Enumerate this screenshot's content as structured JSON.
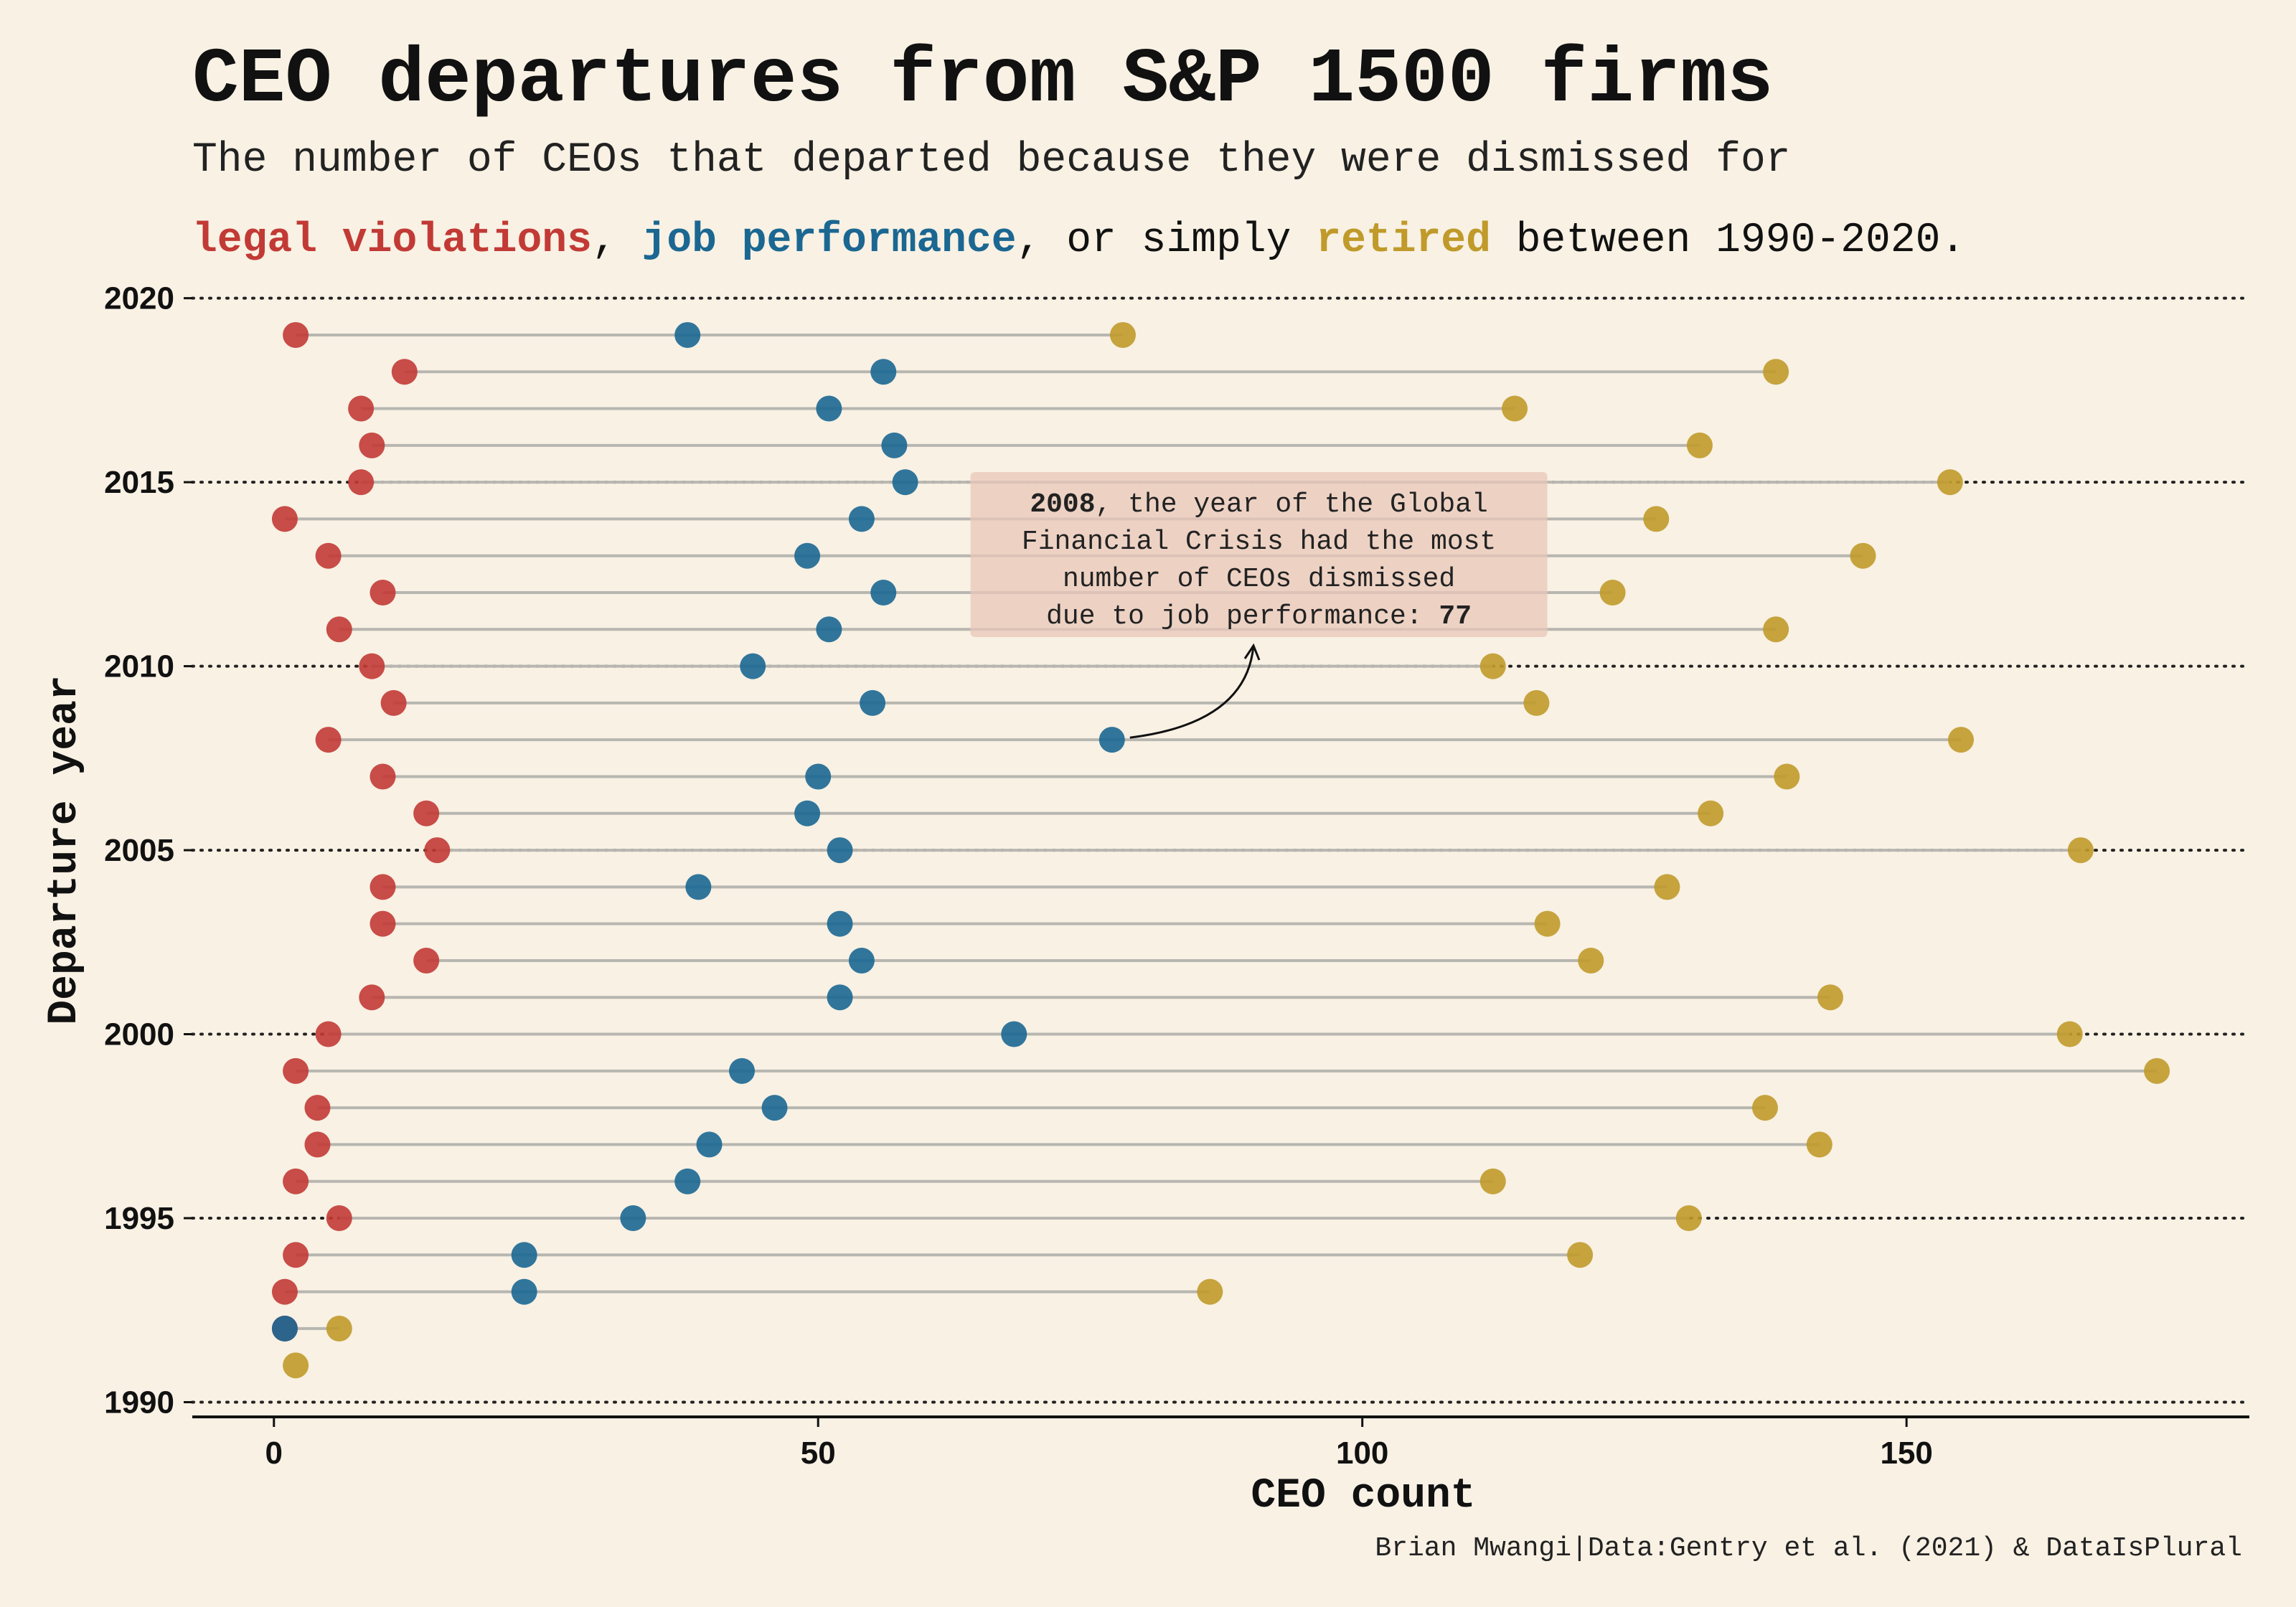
{
  "chart_data": {
    "type": "dumbbell",
    "title": "CEO departures from S&P 1500 firms",
    "subtitle": {
      "line1": "The number of CEOs that departed because they were dismissed for",
      "line2_parts": [
        {
          "text": "legal violations",
          "color": "#c23a35",
          "bold": true
        },
        {
          "text": ", ",
          "color": "#111111",
          "bold": false
        },
        {
          "text": "job performance",
          "color": "#1b6792",
          "bold": true
        },
        {
          "text": ", or simply ",
          "color": "#111111",
          "bold": false
        },
        {
          "text": "retired",
          "color": "#c09a2a",
          "bold": true
        },
        {
          "text": " between 1990-2020.",
          "color": "#111111",
          "bold": false
        }
      ]
    },
    "xlabel": "CEO count",
    "ylabel": "Departure year",
    "xlim": [
      -7.5,
      181.5
    ],
    "ylim": [
      1989.6,
      2020.5
    ],
    "x_ticks": [
      "0",
      "50",
      "100",
      "150"
    ],
    "y_ticks": [
      "1990",
      "1995",
      "2000",
      "2005",
      "2010",
      "2015",
      "2020"
    ],
    "grid": "dotted horizontal lines at y ticks",
    "series_colors": {
      "legal": "#c23a35",
      "performance": "#1b6792",
      "retired": "#c09a2a"
    },
    "years": [
      1991,
      1992,
      1993,
      1994,
      1995,
      1996,
      1997,
      1998,
      1999,
      2000,
      2001,
      2002,
      2003,
      2004,
      2005,
      2006,
      2007,
      2008,
      2009,
      2010,
      2011,
      2012,
      2013,
      2014,
      2015,
      2016,
      2017,
      2018,
      2019,
      2020
    ],
    "series": [
      {
        "name": "legal violations",
        "key": "legal",
        "values": [
          null,
          1,
          1,
          2,
          6,
          2,
          4,
          4,
          2,
          5,
          9,
          14,
          10,
          10,
          15,
          14,
          10,
          5,
          11,
          9,
          6,
          10,
          5,
          1,
          8,
          9,
          8,
          12,
          2,
          null
        ]
      },
      {
        "name": "job performance",
        "key": "performance",
        "values": [
          null,
          1,
          23,
          23,
          33,
          38,
          40,
          46,
          43,
          68,
          52,
          54,
          52,
          39,
          52,
          49,
          50,
          77,
          55,
          44,
          51,
          56,
          49,
          54,
          58,
          57,
          51,
          56,
          38,
          null
        ]
      },
      {
        "name": "retired",
        "key": "retired",
        "values": [
          2,
          6,
          86,
          120,
          130,
          112,
          142,
          137,
          173,
          165,
          143,
          121,
          117,
          128,
          166,
          132,
          139,
          155,
          116,
          112,
          138,
          123,
          146,
          127,
          154,
          131,
          114,
          138,
          78,
          null
        ]
      }
    ],
    "annotation": {
      "bold_year": "2008",
      "line1_rest": ", the year of the Global",
      "line2": "Financial Crisis had the most",
      "line3": "number of CEOs dismissed",
      "line4_prefix": "due to job performance: ",
      "bold_value": "77",
      "target_x": 77,
      "target_y": 2008,
      "box_color": "#e9c7b9"
    },
    "credit": "Brian Mwangi|Data:Gentry et al. (2021) & DataIsPlural"
  }
}
